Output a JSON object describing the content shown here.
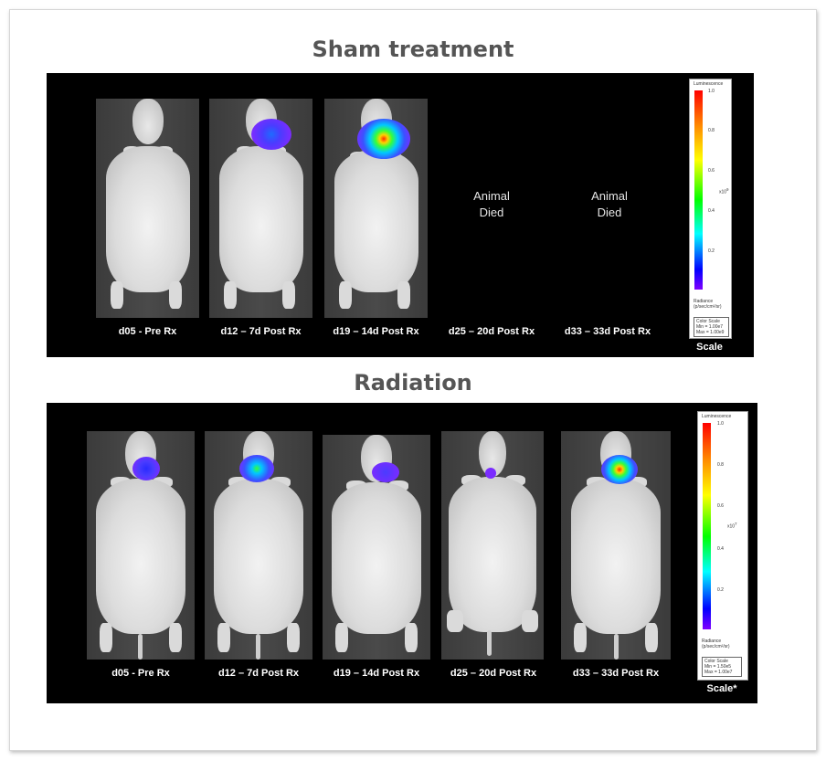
{
  "sections": [
    {
      "title": "Sham treatment",
      "timepoints": [
        "d05 - Pre Rx",
        "d12 – 7d Post Rx",
        "d19 – 14d Post Rx",
        "d25 – 20d Post Rx",
        "d33 – 33d Post Rx"
      ],
      "animal_died_text": "Animal\nDied",
      "scale": {
        "title": "Luminescence",
        "ticks": [
          "1.0",
          "0.8",
          "0.6",
          "0.4",
          "0.2"
        ],
        "exponent": "x10",
        "exponent_power": "9",
        "radiance_label": "Radiance\n(p/sec/cm²/sr)",
        "color_scale": "Color Scale\nMin = 1.00e7\nMax = 1.00e9",
        "caption": "Scale"
      }
    },
    {
      "title": "Radiation",
      "timepoints": [
        "d05 - Pre Rx",
        "d12 – 7d Post Rx",
        "d19 – 14d Post Rx",
        "d25 – 20d Post Rx",
        "d33 – 33d Post Rx"
      ],
      "scale": {
        "title": "Luminescence",
        "ticks": [
          "1.0",
          "0.8",
          "0.6",
          "0.4",
          "0.2"
        ],
        "exponent": "x10",
        "exponent_power": "7",
        "radiance_label": "Radiance\n(p/sec/cm²/sr)",
        "color_scale": "Color Scale\nMin = 1.50e5\nMax = 1.00e7",
        "caption": "Scale*"
      }
    }
  ],
  "colors": {
    "panel_background": "#000000",
    "title_text": "#555555",
    "signal_low": "#7a2cff",
    "signal_mid": "#00c8ff",
    "signal_high": "#ff2a00"
  }
}
